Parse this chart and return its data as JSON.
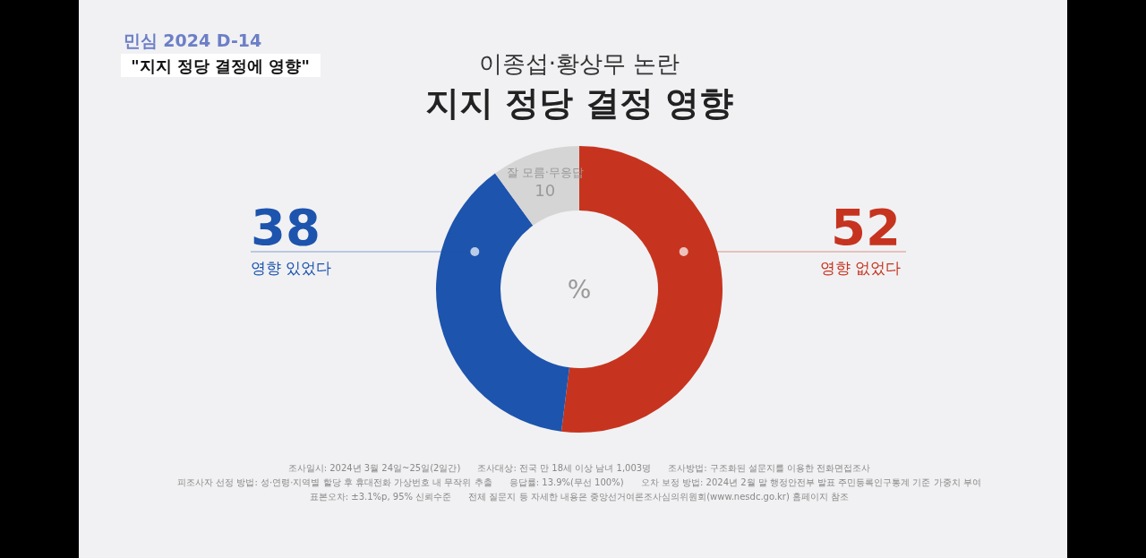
{
  "chart_data": {
    "type": "donut",
    "title": "지지 정당 결정 영향",
    "subtitle": "이종섭·황상무 논란",
    "categories": [
      "영향 없었다",
      "영향 있었다",
      "잘 모름·무응답"
    ],
    "values": [
      52,
      38,
      10
    ],
    "colors": [
      "#c6341f",
      "#1d54ad",
      "#d5d5d5"
    ],
    "data_labels": true,
    "annotations": [
      "민심 2024 D-14",
      "\"지지 정당 결정에 영향\"",
      "%",
      "조사일시: 2024년 3월 24일~25일(2일간)      조사대상: 전국 만 18세 이상 남녀 1,003명      조사방법: 구조화된 설문지를 이용한 전화면접조사",
      "피조사자 선정 방법: 성·연령·지역별 할당 후 휴대전화 가상번호 내 무작위 추출      응답률: 13.9%(무선 100%)      오차 보정 방법: 2024년 2월 말 행정안전부 발표 주민등록인구통계 기준 가중치 부여",
      "표본오차: ±3.1%p, 95% 신뢰수준      전체 질문지 등 자세한 내용은 중앙선거여론조사심의위원회(www.nesdc.go.kr) 홈페이지 참조"
    ]
  }
}
